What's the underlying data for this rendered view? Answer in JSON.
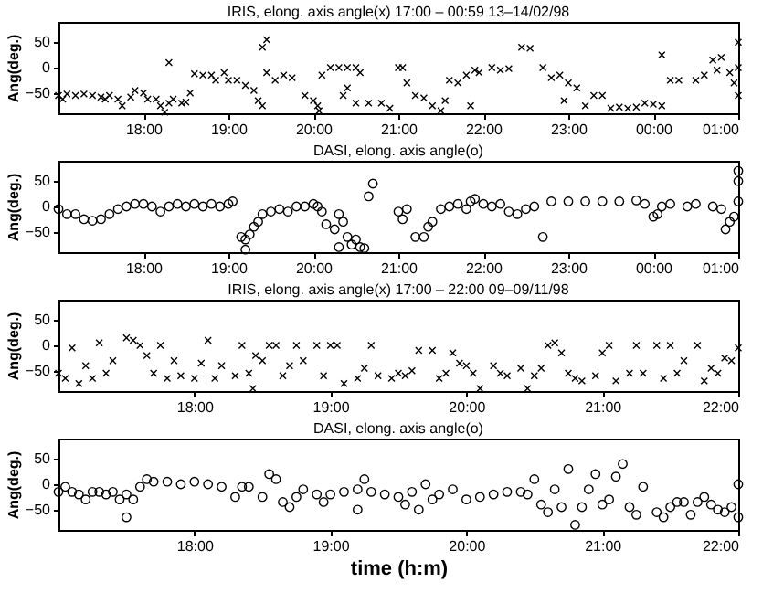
{
  "chart_data": [
    {
      "type": "scatter",
      "title": "IRIS, elong. axis angle(x) 17:00 – 00:59  13–14/02/98",
      "ylabel": "Ang(deg.)",
      "xlim": [
        "--02-13T17:00",
        "--02-14T01:00"
      ],
      "xticks": [
        {
          "value": "--02-13T18:00",
          "label": "18:00"
        },
        {
          "value": "--02-13T19:00",
          "label": "19:00"
        },
        {
          "value": "--02-13T20:00",
          "label": "20:00"
        },
        {
          "value": "--02-13T21:00",
          "label": "21:00"
        },
        {
          "value": "--02-13T22:00",
          "label": "22:00"
        },
        {
          "value": "--02-13T23:00",
          "label": "23:00"
        },
        {
          "value": "--02-14T00:00",
          "label": "00:00"
        },
        {
          "value": "--02-14T01:00",
          "label": "01:00"
        }
      ],
      "ylim": [
        -90,
        90
      ],
      "yticks": [
        -50,
        0,
        50
      ],
      "marker": "cross",
      "series": [
        {
          "color": "#000000",
          "x": [
            "--02-13T17:00",
            "--02-13T17:03",
            "--02-13T17:06",
            "--02-13T17:12",
            "--02-13T17:18",
            "--02-13T17:24",
            "--02-13T17:30",
            "--02-13T17:33",
            "--02-13T17:36",
            "--02-13T17:42",
            "--02-13T17:45",
            "--02-13T17:51",
            "--02-13T17:54",
            "--02-13T18:00",
            "--02-13T18:03",
            "--02-13T18:09",
            "--02-13T18:12",
            "--02-13T18:15",
            "--02-13T18:18",
            "--02-13T18:18",
            "--02-13T18:21",
            "--02-13T18:27",
            "--02-13T18:30",
            "--02-13T18:33",
            "--02-13T18:36",
            "--02-13T18:42",
            "--02-13T18:48",
            "--02-13T18:51",
            "--02-13T18:57",
            "--02-13T19:00",
            "--02-13T19:06",
            "--02-13T19:12",
            "--02-13T19:18",
            "--02-13T19:21",
            "--02-13T19:24",
            "--02-13T19:24",
            "--02-13T19:27",
            "--02-13T19:27",
            "--02-13T19:33",
            "--02-13T19:39",
            "--02-13T19:45",
            "--02-13T19:54",
            "--02-13T20:00",
            "--02-13T20:03",
            "--02-13T20:04",
            "--02-13T20:06",
            "--02-13T20:12",
            "--02-13T20:18",
            "--02-13T20:21",
            "--02-13T20:24",
            "--02-13T20:24",
            "--02-13T20:30",
            "--02-13T20:30",
            "--02-13T20:33",
            "--02-13T20:39",
            "--02-13T20:48",
            "--02-13T20:54",
            "--02-13T21:00",
            "--02-13T21:03",
            "--02-13T21:06",
            "--02-13T21:12",
            "--02-13T21:18",
            "--02-13T21:24",
            "--02-13T21:30",
            "--02-13T21:33",
            "--02-13T21:36",
            "--02-13T21:42",
            "--02-13T21:48",
            "--02-13T21:51",
            "--02-13T21:54",
            "--02-13T21:57",
            "--02-13T22:06",
            "--02-13T22:12",
            "--02-13T22:18",
            "--02-13T22:27",
            "--02-13T22:33",
            "--02-13T22:42",
            "--02-13T22:48",
            "--02-13T22:54",
            "--02-13T22:57",
            "--02-13T23:00",
            "--02-13T23:06",
            "--02-13T23:12",
            "--02-13T23:18",
            "--02-13T23:24",
            "--02-13T23:30",
            "--02-13T23:36",
            "--02-13T23:42",
            "--02-13T23:48",
            "--02-13T23:54",
            "--02-14T00:00",
            "--02-14T00:06",
            "--02-14T00:06",
            "--02-14T00:12",
            "--02-14T00:18",
            "--02-14T00:30",
            "--02-14T00:36",
            "--02-14T00:42",
            "--02-14T00:45",
            "--02-14T00:48",
            "--02-14T00:54",
            "--02-14T00:57",
            "--02-14T01:00",
            "--02-14T01:00",
            "--02-14T01:00"
          ],
          "values": [
            -55,
            -62,
            -52,
            -55,
            -52,
            -55,
            -58,
            -62,
            -55,
            -62,
            -75,
            -58,
            -45,
            -50,
            -62,
            -62,
            -75,
            -88,
            -70,
            10,
            -62,
            -70,
            -68,
            -50,
            -12,
            -15,
            -15,
            -25,
            -10,
            -25,
            -25,
            -35,
            -45,
            -65,
            -75,
            40,
            -10,
            55,
            -25,
            -15,
            -20,
            -55,
            -65,
            -75,
            -85,
            -15,
            0,
            0,
            -55,
            0,
            -40,
            0,
            -70,
            -10,
            -70,
            -70,
            -80,
            0,
            0,
            -30,
            -55,
            -60,
            -75,
            -85,
            -65,
            -25,
            -30,
            -15,
            -75,
            -5,
            -10,
            0,
            -5,
            -2,
            40,
            38,
            0,
            -20,
            -15,
            -65,
            -30,
            -40,
            -75,
            -55,
            -55,
            -80,
            -78,
            -80,
            -78,
            -70,
            -72,
            -75,
            25,
            -25,
            -25,
            -25,
            -15,
            15,
            -5,
            20,
            -10,
            -30,
            -55,
            50,
            0
          ]
        }
      ]
    },
    {
      "type": "scatter",
      "title": "DASI, elong. axis angle(o)",
      "ylabel": "Ang(deg.)",
      "xlim": [
        "--02-13T17:00",
        "--02-14T01:00"
      ],
      "xticks": [
        {
          "value": "--02-13T18:00",
          "label": "18:00"
        },
        {
          "value": "--02-13T19:00",
          "label": "19:00"
        },
        {
          "value": "--02-13T20:00",
          "label": "20:00"
        },
        {
          "value": "--02-13T21:00",
          "label": "21:00"
        },
        {
          "value": "--02-13T22:00",
          "label": "22:00"
        },
        {
          "value": "--02-13T23:00",
          "label": "23:00"
        },
        {
          "value": "--02-14T00:00",
          "label": "00:00"
        },
        {
          "value": "--02-14T01:00",
          "label": "01:00"
        }
      ],
      "ylim": [
        -90,
        90
      ],
      "yticks": [
        -50,
        0,
        50
      ],
      "marker": "circle",
      "series": [
        {
          "color": "#000000",
          "x": [
            "--02-13T17:00",
            "--02-13T17:06",
            "--02-13T17:12",
            "--02-13T17:18",
            "--02-13T17:24",
            "--02-13T17:30",
            "--02-13T17:36",
            "--02-13T17:42",
            "--02-13T17:48",
            "--02-13T17:54",
            "--02-13T18:00",
            "--02-13T18:06",
            "--02-13T18:12",
            "--02-13T18:18",
            "--02-13T18:24",
            "--02-13T18:30",
            "--02-13T18:36",
            "--02-13T18:42",
            "--02-13T18:48",
            "--02-13T18:54",
            "--02-13T19:00",
            "--02-13T19:03",
            "--02-13T19:09",
            "--02-13T19:12",
            "--02-13T19:12",
            "--02-13T19:15",
            "--02-13T19:18",
            "--02-13T19:21",
            "--02-13T19:24",
            "--02-13T19:30",
            "--02-13T19:36",
            "--02-13T19:42",
            "--02-13T19:48",
            "--02-13T19:54",
            "--02-13T20:00",
            "--02-13T20:03",
            "--02-13T20:06",
            "--02-13T20:09",
            "--02-13T20:15",
            "--02-13T20:18",
            "--02-13T20:18",
            "--02-13T20:21",
            "--02-13T20:24",
            "--02-13T20:27",
            "--02-13T20:30",
            "--02-13T20:33",
            "--02-13T20:36",
            "--02-13T20:39",
            "--02-13T20:42",
            "--02-13T21:00",
            "--02-13T21:03",
            "--02-13T21:06",
            "--02-13T21:12",
            "--02-13T21:18",
            "--02-13T21:21",
            "--02-13T21:24",
            "--02-13T21:30",
            "--02-13T21:36",
            "--02-13T21:42",
            "--02-13T21:48",
            "--02-13T21:51",
            "--02-13T21:54",
            "--02-13T22:00",
            "--02-13T22:06",
            "--02-13T22:12",
            "--02-13T22:18",
            "--02-13T22:24",
            "--02-13T22:30",
            "--02-13T22:36",
            "--02-13T22:42",
            "--02-13T22:48",
            "--02-13T23:00",
            "--02-13T23:12",
            "--02-13T23:24",
            "--02-13T23:36",
            "--02-13T23:48",
            "--02-13T23:54",
            "--02-14T00:00",
            "--02-14T00:03",
            "--02-14T00:06",
            "--02-14T00:12",
            "--02-14T00:24",
            "--02-14T00:30",
            "--02-14T00:42",
            "--02-14T00:48",
            "--02-14T00:51",
            "--02-14T00:54",
            "--02-14T00:57",
            "--02-14T01:00",
            "--02-14T01:00",
            "--02-14T01:00"
          ],
          "values": [
            -5,
            -15,
            -15,
            -25,
            -28,
            -25,
            -15,
            -5,
            0,
            5,
            5,
            0,
            -10,
            0,
            5,
            0,
            5,
            0,
            5,
            0,
            5,
            10,
            -60,
            -65,
            -85,
            -55,
            -40,
            -30,
            -15,
            -10,
            -5,
            -10,
            0,
            0,
            5,
            0,
            -10,
            -35,
            -45,
            -15,
            -80,
            -30,
            -60,
            -75,
            -65,
            -80,
            -82,
            20,
            45,
            -10,
            -25,
            -5,
            -60,
            -60,
            -40,
            -30,
            -5,
            0,
            5,
            -5,
            10,
            15,
            5,
            0,
            5,
            -10,
            -15,
            -5,
            0,
            -60,
            10,
            10,
            10,
            10,
            10,
            12,
            5,
            -20,
            -15,
            0,
            5,
            0,
            5,
            0,
            -5,
            -45,
            -30,
            -20,
            10,
            70,
            50
          ]
        }
      ]
    },
    {
      "type": "scatter",
      "title": "IRIS, elong. axis angle(x) 17:00 – 22:00  09–09/11/98",
      "ylabel": "Ang(deg.)",
      "xlim": [
        17,
        22
      ],
      "xticks": [
        {
          "value": 18,
          "label": "18:00"
        },
        {
          "value": 19,
          "label": "19:00"
        },
        {
          "value": 20,
          "label": "20:00"
        },
        {
          "value": 21,
          "label": "21:00"
        },
        {
          "value": 22,
          "label": "22:00"
        }
      ],
      "ylim": [
        -90,
        90
      ],
      "yticks": [
        -50,
        0,
        50
      ],
      "marker": "cross",
      "series": [
        {
          "color": "#000000",
          "x": [
            17.0,
            17.05,
            17.1,
            17.15,
            17.2,
            17.25,
            17.3,
            17.35,
            17.4,
            17.5,
            17.55,
            17.6,
            17.65,
            17.7,
            17.75,
            17.8,
            17.85,
            17.9,
            18.0,
            18.05,
            18.1,
            18.15,
            18.2,
            18.3,
            18.35,
            18.4,
            18.43,
            18.45,
            18.5,
            18.55,
            18.6,
            18.65,
            18.7,
            18.75,
            18.8,
            18.9,
            18.95,
            19.0,
            19.05,
            19.1,
            19.2,
            19.25,
            19.3,
            19.35,
            19.45,
            19.5,
            19.55,
            19.6,
            19.65,
            19.75,
            19.8,
            19.85,
            19.9,
            19.95,
            20.0,
            20.05,
            20.1,
            20.2,
            20.25,
            20.3,
            20.4,
            20.45,
            20.5,
            20.55,
            20.6,
            20.65,
            20.7,
            20.75,
            20.8,
            20.85,
            20.95,
            21.0,
            21.05,
            21.1,
            21.2,
            21.25,
            21.3,
            21.4,
            21.45,
            21.5,
            21.55,
            21.6,
            21.7,
            21.75,
            21.8,
            21.85,
            21.9,
            21.95,
            22.0
          ],
          "values": [
            -55,
            -65,
            -5,
            -75,
            -40,
            -65,
            5,
            -55,
            -30,
            15,
            10,
            0,
            -20,
            -55,
            0,
            -65,
            -30,
            -60,
            -65,
            -35,
            10,
            -65,
            -40,
            -60,
            0,
            -55,
            -85,
            -20,
            -30,
            0,
            0,
            -60,
            -40,
            0,
            -30,
            0,
            -60,
            0,
            0,
            -75,
            -65,
            -45,
            0,
            -60,
            -65,
            -55,
            -60,
            -50,
            -10,
            -10,
            -65,
            -55,
            -15,
            -35,
            -40,
            -55,
            -85,
            -40,
            -55,
            -60,
            -45,
            -85,
            -60,
            -45,
            0,
            5,
            -15,
            -55,
            -65,
            -70,
            -60,
            -15,
            0,
            -70,
            -55,
            0,
            -55,
            0,
            -65,
            0,
            -55,
            -30,
            0,
            -70,
            -45,
            -55,
            -25,
            -30,
            -5
          ]
        }
      ]
    },
    {
      "type": "scatter",
      "title": "DASI, elong. axis angle(o)",
      "ylabel": "Ang(deg.)",
      "xlabel": "time (h:m)",
      "xlim": [
        17,
        22
      ],
      "xticks": [
        {
          "value": 18,
          "label": "18:00"
        },
        {
          "value": 19,
          "label": "19:00"
        },
        {
          "value": 20,
          "label": "20:00"
        },
        {
          "value": 21,
          "label": "21:00"
        },
        {
          "value": 22,
          "label": "22:00"
        }
      ],
      "ylim": [
        -90,
        90
      ],
      "yticks": [
        -50,
        0,
        50
      ],
      "marker": "circle",
      "series": [
        {
          "color": "#000000",
          "x": [
            17.0,
            17.05,
            17.1,
            17.15,
            17.2,
            17.25,
            17.3,
            17.35,
            17.4,
            17.45,
            17.5,
            17.5,
            17.55,
            17.6,
            17.65,
            17.7,
            17.8,
            17.9,
            18.0,
            18.1,
            18.2,
            18.3,
            18.35,
            18.4,
            18.5,
            18.55,
            18.6,
            18.65,
            18.7,
            18.75,
            18.8,
            18.9,
            18.95,
            19.0,
            19.1,
            19.2,
            19.2,
            19.25,
            19.3,
            19.4,
            19.5,
            19.55,
            19.6,
            19.65,
            19.7,
            19.75,
            19.8,
            19.9,
            20.0,
            20.1,
            20.2,
            20.3,
            20.4,
            20.45,
            20.5,
            20.55,
            20.6,
            20.65,
            20.7,
            20.75,
            20.8,
            20.85,
            20.9,
            20.95,
            21.0,
            21.05,
            21.1,
            21.15,
            21.2,
            21.25,
            21.3,
            21.4,
            21.45,
            21.5,
            21.55,
            21.6,
            21.65,
            21.7,
            21.75,
            21.8,
            21.85,
            21.9,
            21.95,
            22.0,
            22.0
          ],
          "values": [
            -15,
            -5,
            -15,
            -20,
            -30,
            -15,
            -15,
            -20,
            -15,
            -30,
            -65,
            -20,
            -30,
            -5,
            10,
            5,
            5,
            0,
            5,
            0,
            -5,
            -25,
            -5,
            -5,
            -25,
            20,
            10,
            -35,
            -45,
            -25,
            -10,
            -20,
            -35,
            -20,
            -15,
            -50,
            -10,
            10,
            -15,
            -20,
            -25,
            -40,
            -15,
            -50,
            0,
            -30,
            -20,
            -10,
            -30,
            -25,
            -20,
            -15,
            -15,
            -20,
            10,
            -40,
            -55,
            -10,
            -45,
            30,
            -80,
            -45,
            -10,
            20,
            -40,
            -30,
            15,
            40,
            -45,
            -60,
            -5,
            -55,
            -65,
            -45,
            -35,
            -35,
            -60,
            -35,
            -25,
            -40,
            -50,
            -55,
            -45,
            0,
            -65
          ]
        }
      ]
    }
  ]
}
